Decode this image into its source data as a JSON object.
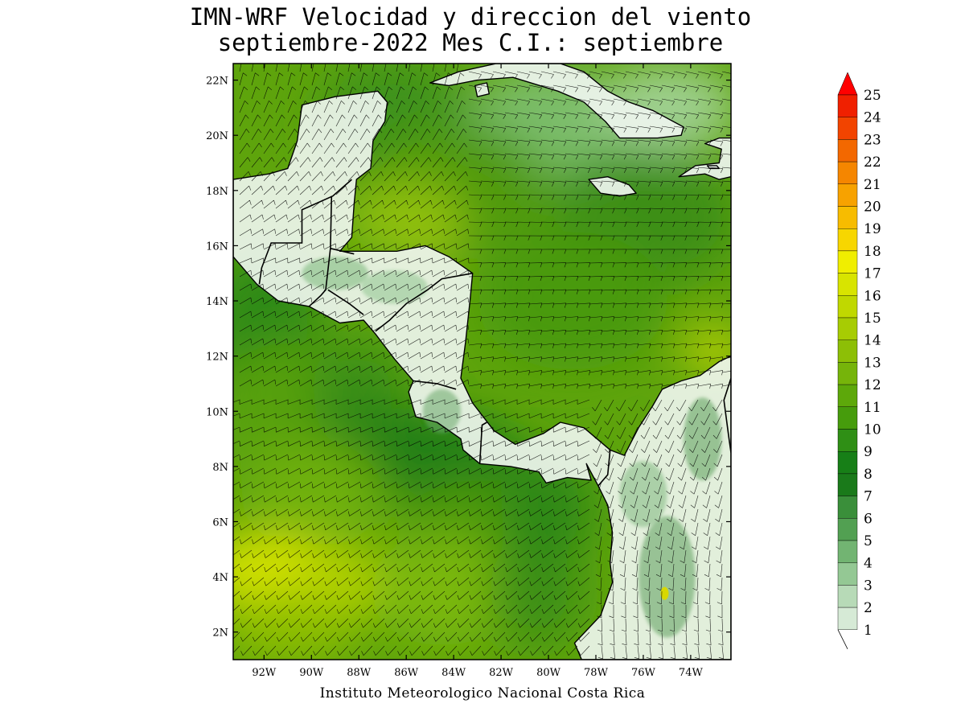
{
  "title": {
    "line1": "IMN-WRF Velocidad y direccion del viento",
    "line2": "septiembre-2022 Mes C.I.: septiembre"
  },
  "credit": "Instituto Meteorologico Nacional Costa Rica",
  "map": {
    "lon_range": [
      -93.3,
      -72.3
    ],
    "lat_range": [
      1.0,
      22.6
    ],
    "lon_ticks": [
      "92W",
      "90W",
      "88W",
      "86W",
      "84W",
      "82W",
      "80W",
      "78W",
      "76W",
      "74W"
    ],
    "lat_ticks": [
      "22N",
      "20N",
      "18N",
      "16N",
      "14N",
      "12N",
      "10N",
      "8N",
      "6N",
      "4N",
      "2N"
    ],
    "lon_tick_values": [
      -92,
      -90,
      -88,
      -86,
      -84,
      -82,
      -80,
      -78,
      -76,
      -74
    ],
    "lat_tick_values": [
      22,
      20,
      18,
      16,
      14,
      12,
      10,
      8,
      6,
      4,
      2
    ],
    "variable": "wind speed and direction"
  },
  "colorbar": {
    "labels": [
      "25",
      "24",
      "23",
      "22",
      "21",
      "20",
      "19",
      "18",
      "17",
      "16",
      "15",
      "14",
      "13",
      "12",
      "11",
      "10",
      "9",
      "8",
      "7",
      "6",
      "5",
      "4",
      "3",
      "2",
      "1"
    ],
    "colors": [
      "#f2f7f2",
      "#d6ead6",
      "#b7dab7",
      "#94c894",
      "#72b472",
      "#52a052",
      "#3a8f3a",
      "#1a7a1a",
      "#177f17",
      "#2f8f15",
      "#469c0c",
      "#5da80a",
      "#76b40a",
      "#8dbf06",
      "#a7cc03",
      "#c0d800",
      "#d8e400",
      "#f0ee00",
      "#f7d600",
      "#f7bc00",
      "#f7a200",
      "#f58600",
      "#f36800",
      "#f24400",
      "#f02000"
    ],
    "extend_max_color": "#ff0000"
  },
  "colors": {
    "land": "#eef5ee",
    "coast": "#000000"
  }
}
